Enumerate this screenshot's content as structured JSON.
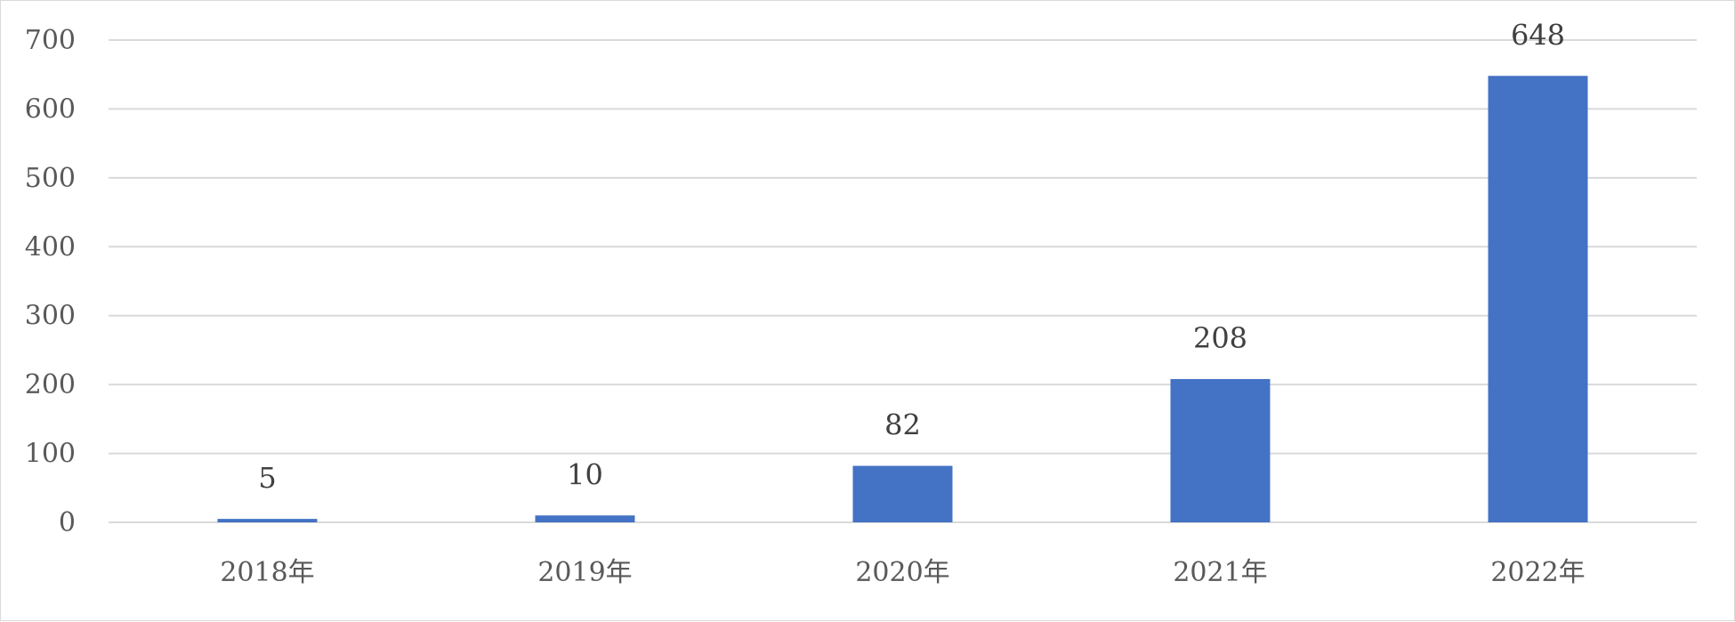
{
  "chart_data": {
    "type": "bar",
    "categories": [
      "2018年",
      "2019年",
      "2020年",
      "2021年",
      "2022年"
    ],
    "values": [
      5,
      10,
      82,
      208,
      648
    ],
    "data_labels": [
      "5",
      "10",
      "82",
      "208",
      "648"
    ],
    "ylim": [
      0,
      700
    ],
    "yticks": [
      0,
      100,
      200,
      300,
      400,
      500,
      600,
      700
    ],
    "grid": true,
    "bar_color": "#4472c4"
  }
}
